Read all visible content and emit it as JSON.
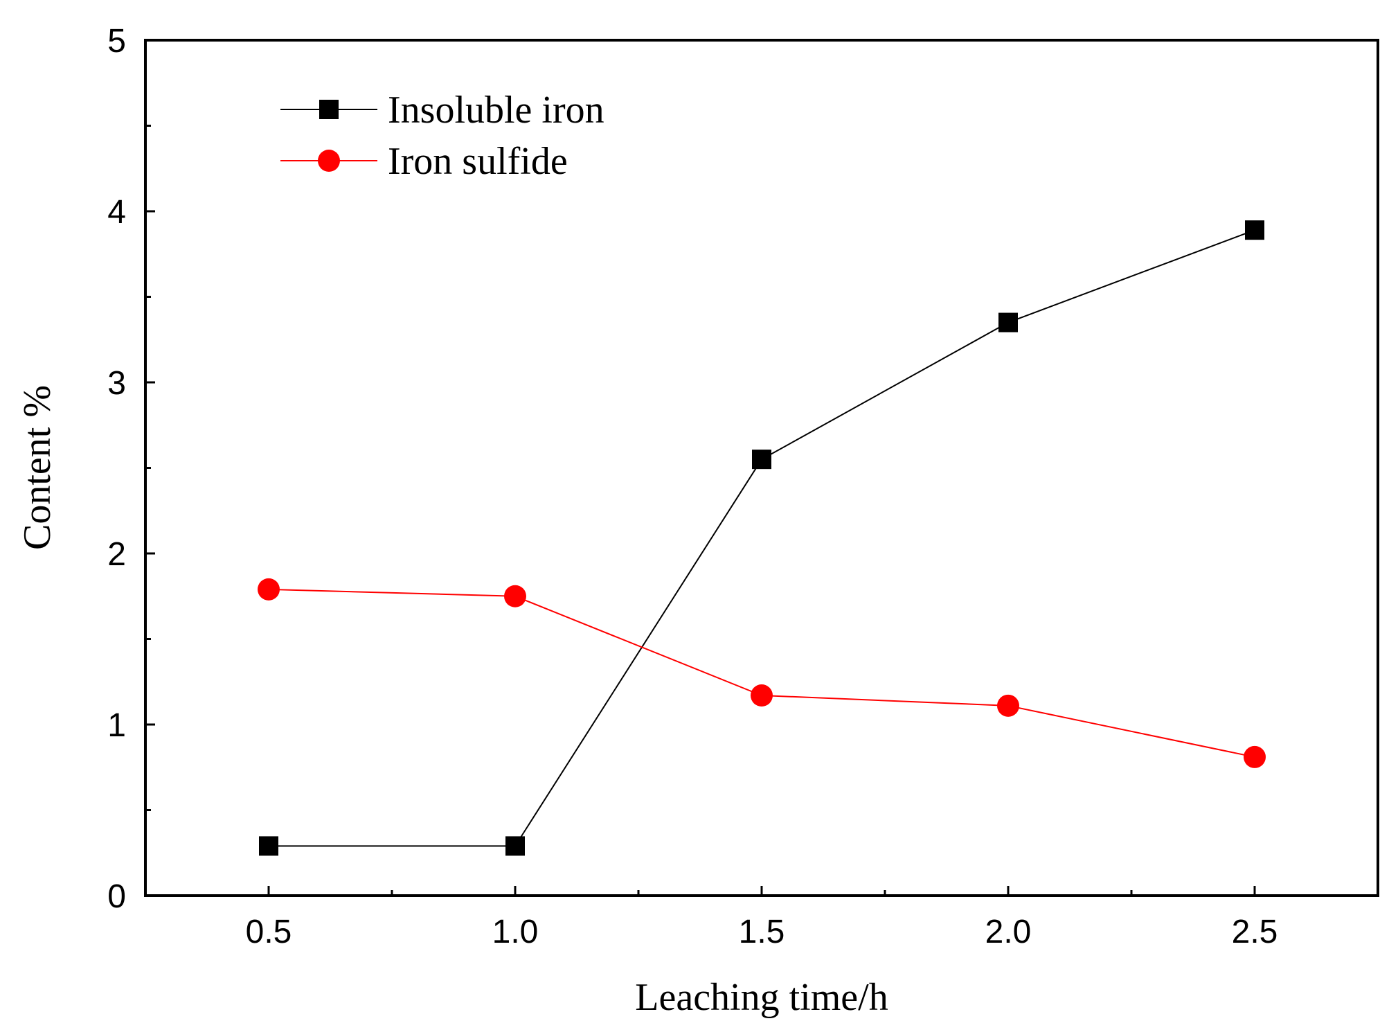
{
  "chart_data": {
    "type": "line",
    "title": "",
    "xlabel": "Leaching time/h",
    "ylabel": "Content %",
    "x": [
      0.5,
      1.0,
      1.5,
      2.0,
      2.5
    ],
    "x_tick_labels": [
      "0.5",
      "1.0",
      "1.5",
      "2.0",
      "2.5"
    ],
    "y_tick_labels": [
      "0",
      "1",
      "2",
      "3",
      "4",
      "5"
    ],
    "xlim": [
      0.25,
      2.75
    ],
    "ylim": [
      0,
      5
    ],
    "grid": false,
    "legend_position": "top-left",
    "series": [
      {
        "name": "Insoluble iron",
        "marker": "square",
        "color": "#000000",
        "values": [
          0.29,
          0.29,
          2.55,
          3.35,
          3.89
        ]
      },
      {
        "name": "Iron sulfide",
        "marker": "circle",
        "color": "#ff0000",
        "values": [
          1.79,
          1.75,
          1.17,
          1.11,
          0.81
        ]
      }
    ]
  }
}
